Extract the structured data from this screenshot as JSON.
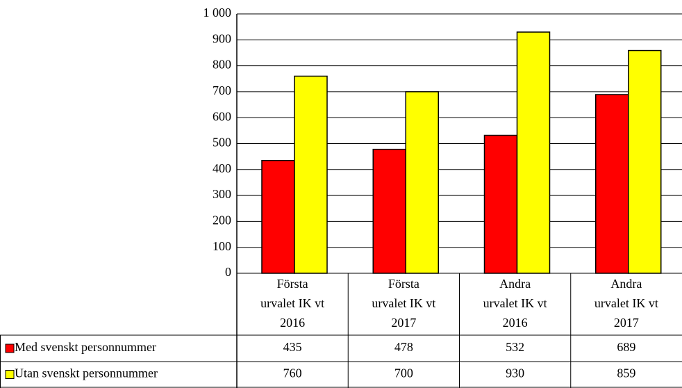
{
  "chart_data": {
    "type": "bar",
    "categories": [
      "Första\nurvalet IK vt\n2016",
      "Första\nurvalet IK vt\n2017",
      "Andra\nurvalet IK vt\n2016",
      "Andra\nurvalet IK vt\n2017"
    ],
    "series": [
      {
        "name": "Med svenskt personnummer",
        "color": "#ff0000",
        "values": [
          435,
          478,
          532,
          689
        ]
      },
      {
        "name": "Utan svenskt personnummer",
        "color": "#ffff00",
        "values": [
          760,
          700,
          930,
          859
        ]
      }
    ],
    "ylim": [
      0,
      1000
    ],
    "yticks": [
      0,
      100,
      200,
      300,
      400,
      500,
      600,
      700,
      800,
      900,
      {
        "value": 1000,
        "label": "1 000"
      }
    ],
    "grid": true
  }
}
